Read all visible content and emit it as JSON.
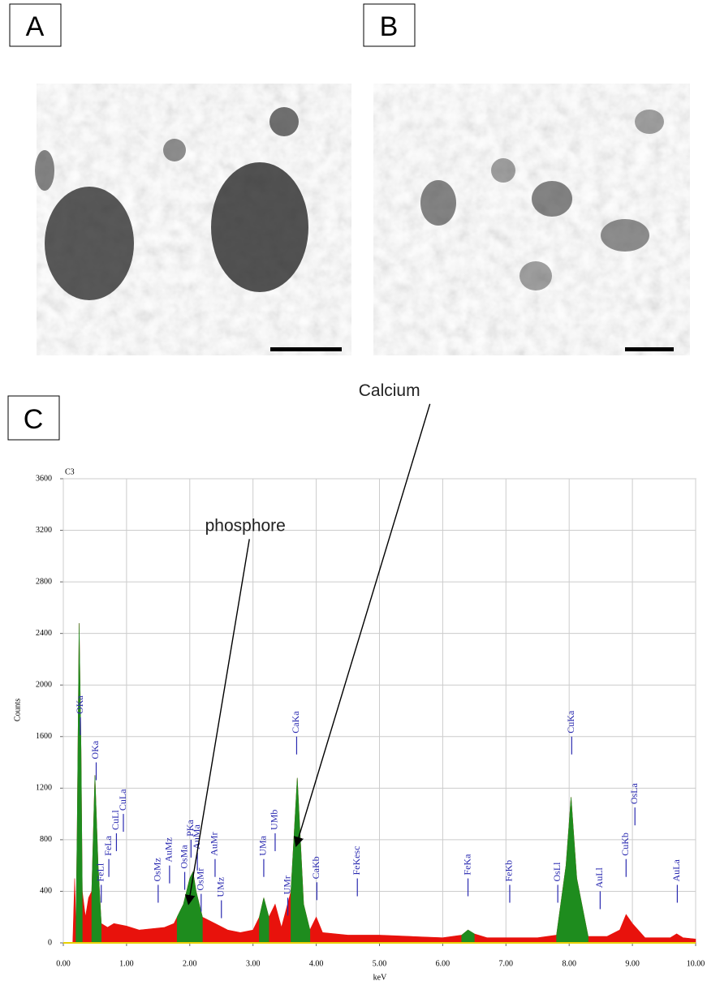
{
  "panels": {
    "a": "A",
    "b": "B",
    "c": "C"
  },
  "chart_data": {
    "type": "area",
    "label": "C3",
    "ylabel": "Counts",
    "xlabel": "keV",
    "xlim": [
      0,
      10
    ],
    "ylim": [
      0,
      3600
    ],
    "grid": true,
    "yticks": [
      0,
      400,
      800,
      1200,
      1600,
      2000,
      2400,
      2800,
      3200,
      3600
    ],
    "xticks": [
      {
        "value": 0,
        "label": "0.00"
      },
      {
        "value": 1,
        "label": "1.00"
      },
      {
        "value": 2,
        "label": "2.00"
      },
      {
        "value": 3,
        "label": "3.00"
      },
      {
        "value": 4,
        "label": "4.00"
      },
      {
        "value": 5,
        "label": "5.00"
      },
      {
        "value": 6,
        "label": "6.00"
      },
      {
        "value": 7,
        "label": "7.00"
      },
      {
        "value": 8,
        "label": "8.00"
      },
      {
        "value": 9,
        "label": "9.00"
      },
      {
        "value": 10,
        "label": "10.00"
      }
    ],
    "x": [
      0.15,
      0.18,
      0.2,
      0.22,
      0.25,
      0.28,
      0.3,
      0.35,
      0.4,
      0.45,
      0.5,
      0.55,
      0.6,
      0.7,
      0.8,
      1.0,
      1.2,
      1.4,
      1.6,
      1.75,
      1.8,
      1.9,
      2.0,
      2.05,
      2.1,
      2.2,
      2.4,
      2.6,
      2.8,
      3.0,
      3.1,
      3.17,
      3.25,
      3.35,
      3.45,
      3.6,
      3.7,
      3.8,
      3.9,
      4.0,
      4.1,
      4.5,
      5.0,
      5.5,
      6.0,
      6.3,
      6.4,
      6.5,
      6.7,
      7.0,
      7.5,
      7.8,
      7.95,
      8.03,
      8.12,
      8.3,
      8.6,
      8.8,
      8.9,
      9.0,
      9.2,
      9.6,
      9.7,
      9.8,
      10.0
    ],
    "series": [
      {
        "color": "#e8120c",
        "values": [
          0,
          500,
          100,
          900,
          2480,
          1500,
          400,
          200,
          350,
          400,
          1300,
          600,
          150,
          120,
          150,
          130,
          100,
          110,
          120,
          150,
          200,
          300,
          500,
          550,
          400,
          200,
          150,
          100,
          80,
          100,
          200,
          350,
          200,
          300,
          120,
          400,
          1280,
          300,
          100,
          200,
          80,
          60,
          60,
          50,
          40,
          60,
          100,
          70,
          40,
          40,
          40,
          60,
          600,
          1130,
          500,
          50,
          50,
          100,
          220,
          150,
          40,
          40,
          70,
          40,
          30
        ]
      },
      {
        "color": "#1e8c1e",
        "values": [
          null,
          null,
          100,
          900,
          2480,
          1500,
          400,
          null,
          null,
          400,
          1300,
          600,
          150,
          null,
          null,
          null,
          null,
          null,
          null,
          null,
          200,
          300,
          500,
          550,
          400,
          200,
          null,
          null,
          null,
          null,
          200,
          350,
          200,
          null,
          null,
          400,
          1280,
          300,
          100,
          null,
          null,
          null,
          null,
          null,
          null,
          60,
          100,
          70,
          null,
          null,
          null,
          60,
          600,
          1130,
          500,
          50,
          null,
          null,
          null,
          null,
          null,
          null,
          null,
          null,
          null
        ]
      }
    ],
    "peak_labels": [
      {
        "text": "OKa",
        "x": 0.27,
        "y": 1750
      },
      {
        "text": "OKa",
        "x": 0.52,
        "y": 1400
      },
      {
        "text": "FeLl",
        "x": 0.6,
        "y": 450
      },
      {
        "text": "FeLa",
        "x": 0.72,
        "y": 650
      },
      {
        "text": "CuLl",
        "x": 0.84,
        "y": 850
      },
      {
        "text": "CuLa",
        "x": 0.95,
        "y": 1000
      },
      {
        "text": "OsMz",
        "x": 1.5,
        "y": 450
      },
      {
        "text": "AuMz",
        "x": 1.68,
        "y": 600
      },
      {
        "text": "OsMa",
        "x": 1.92,
        "y": 550
      },
      {
        "text": "PKa",
        "x": 2.02,
        "y": 800
      },
      {
        "text": "AuMa",
        "x": 2.12,
        "y": 700
      },
      {
        "text": "OsMr",
        "x": 2.18,
        "y": 380
      },
      {
        "text": "AuMr",
        "x": 2.4,
        "y": 650
      },
      {
        "text": "UMz",
        "x": 2.5,
        "y": 330
      },
      {
        "text": "UMa",
        "x": 3.17,
        "y": 650
      },
      {
        "text": "UMb",
        "x": 3.35,
        "y": 850
      },
      {
        "text": "UMr",
        "x": 3.55,
        "y": 350
      },
      {
        "text": "CaKa",
        "x": 3.69,
        "y": 1600
      },
      {
        "text": "CaKb",
        "x": 4.01,
        "y": 470
      },
      {
        "text": "FeKesc",
        "x": 4.65,
        "y": 500
      },
      {
        "text": "FeKa",
        "x": 6.4,
        "y": 500
      },
      {
        "text": "FeKb",
        "x": 7.06,
        "y": 450
      },
      {
        "text": "OsLl",
        "x": 7.82,
        "y": 450
      },
      {
        "text": "CuKa",
        "x": 8.04,
        "y": 1600
      },
      {
        "text": "AuLl",
        "x": 8.49,
        "y": 400
      },
      {
        "text": "CuKb",
        "x": 8.9,
        "y": 650
      },
      {
        "text": "OsLa",
        "x": 9.04,
        "y": 1050
      },
      {
        "text": "AuLa",
        "x": 9.71,
        "y": 450
      }
    ],
    "arrows": [
      {
        "text": "phosphore",
        "x": 1.98,
        "y": 300
      },
      {
        "text": "Calcium",
        "x": 3.68,
        "y": 750
      }
    ]
  }
}
